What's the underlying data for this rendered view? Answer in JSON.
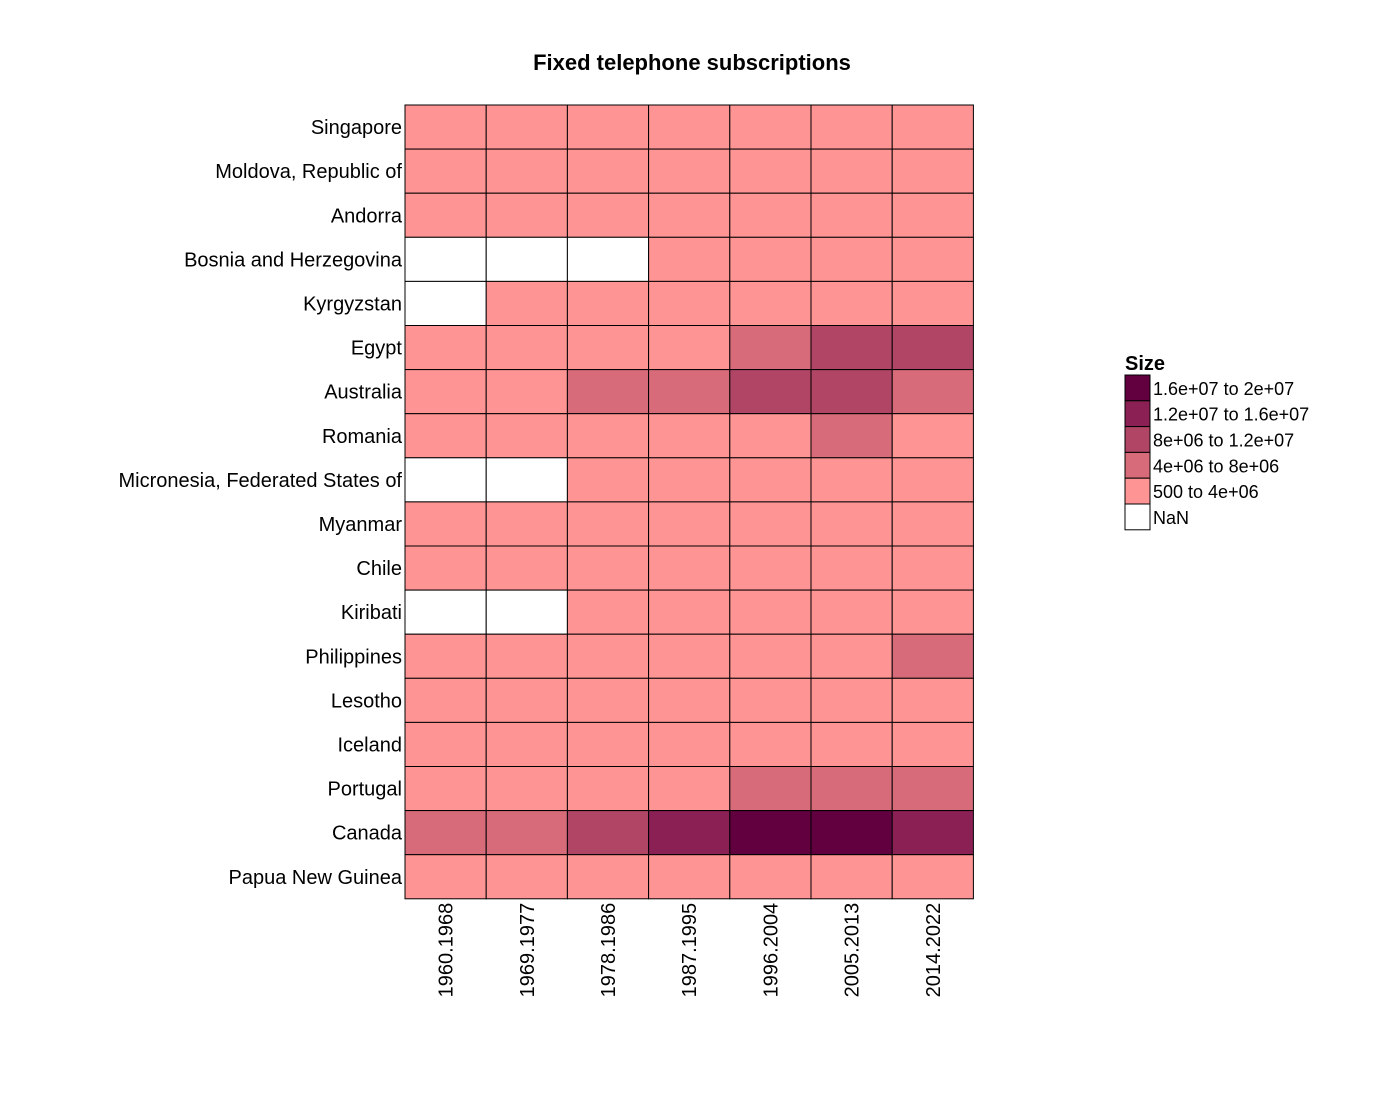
{
  "chart_data": {
    "type": "heatmap",
    "title": "Fixed telephone subscriptions",
    "xlabel": "",
    "ylabel": "",
    "x_categories": [
      "1960.1968",
      "1969.1977",
      "1978.1986",
      "1987.1995",
      "1996.2004",
      "2005.2013",
      "2014.2022"
    ],
    "y_categories": [
      "Singapore",
      "Moldova, Republic of",
      "Andorra",
      "Bosnia and Herzegovina",
      "Kyrgyzstan",
      "Egypt",
      "Australia",
      "Romania",
      "Micronesia, Federated States of",
      "Myanmar",
      "Chile",
      "Kiribati",
      "Philippines",
      "Lesotho",
      "Iceland",
      "Portugal",
      "Canada",
      "Papua New Guinea"
    ],
    "bin_matrix": [
      [
        0,
        0,
        0,
        0,
        0,
        0,
        0
      ],
      [
        0,
        0,
        0,
        0,
        0,
        0,
        0
      ],
      [
        0,
        0,
        0,
        0,
        0,
        0,
        0
      ],
      [
        -1,
        -1,
        -1,
        0,
        0,
        0,
        0
      ],
      [
        -1,
        0,
        0,
        0,
        0,
        0,
        0
      ],
      [
        0,
        0,
        0,
        0,
        1,
        2,
        2
      ],
      [
        0,
        0,
        1,
        1,
        2,
        2,
        1
      ],
      [
        0,
        0,
        0,
        0,
        0,
        1,
        0
      ],
      [
        -1,
        -1,
        0,
        0,
        0,
        0,
        0
      ],
      [
        0,
        0,
        0,
        0,
        0,
        0,
        0
      ],
      [
        0,
        0,
        0,
        0,
        0,
        0,
        0
      ],
      [
        -1,
        -1,
        0,
        0,
        0,
        0,
        0
      ],
      [
        0,
        0,
        0,
        0,
        0,
        0,
        1
      ],
      [
        0,
        0,
        0,
        0,
        0,
        0,
        0
      ],
      [
        0,
        0,
        0,
        0,
        0,
        0,
        0
      ],
      [
        0,
        0,
        0,
        0,
        1,
        1,
        1
      ],
      [
        1,
        1,
        2,
        3,
        4,
        4,
        3
      ],
      [
        0,
        0,
        0,
        0,
        0,
        0,
        0
      ]
    ],
    "legend": {
      "title": "Size",
      "placement": "right",
      "bins": [
        {
          "label": "1.6e+07  to  2e+07",
          "color": "#62003f"
        },
        {
          "label": "1.2e+07  to  1.6e+07",
          "color": "#8b2055"
        },
        {
          "label": "8e+06  to  1.2e+07",
          "color": "#b04565"
        },
        {
          "label": "4e+06  to  8e+06",
          "color": "#d76b7a"
        },
        {
          "label": "500  to  4e+06",
          "color": "#ff9494"
        },
        {
          "label": "NaN",
          "color": "#ffffff"
        }
      ]
    },
    "bin_index_note_colors": {
      "-1": "#ffffff",
      "0": "#ff9494",
      "1": "#d76b7a",
      "2": "#b04565",
      "3": "#8b2055",
      "4": "#62003f"
    }
  }
}
